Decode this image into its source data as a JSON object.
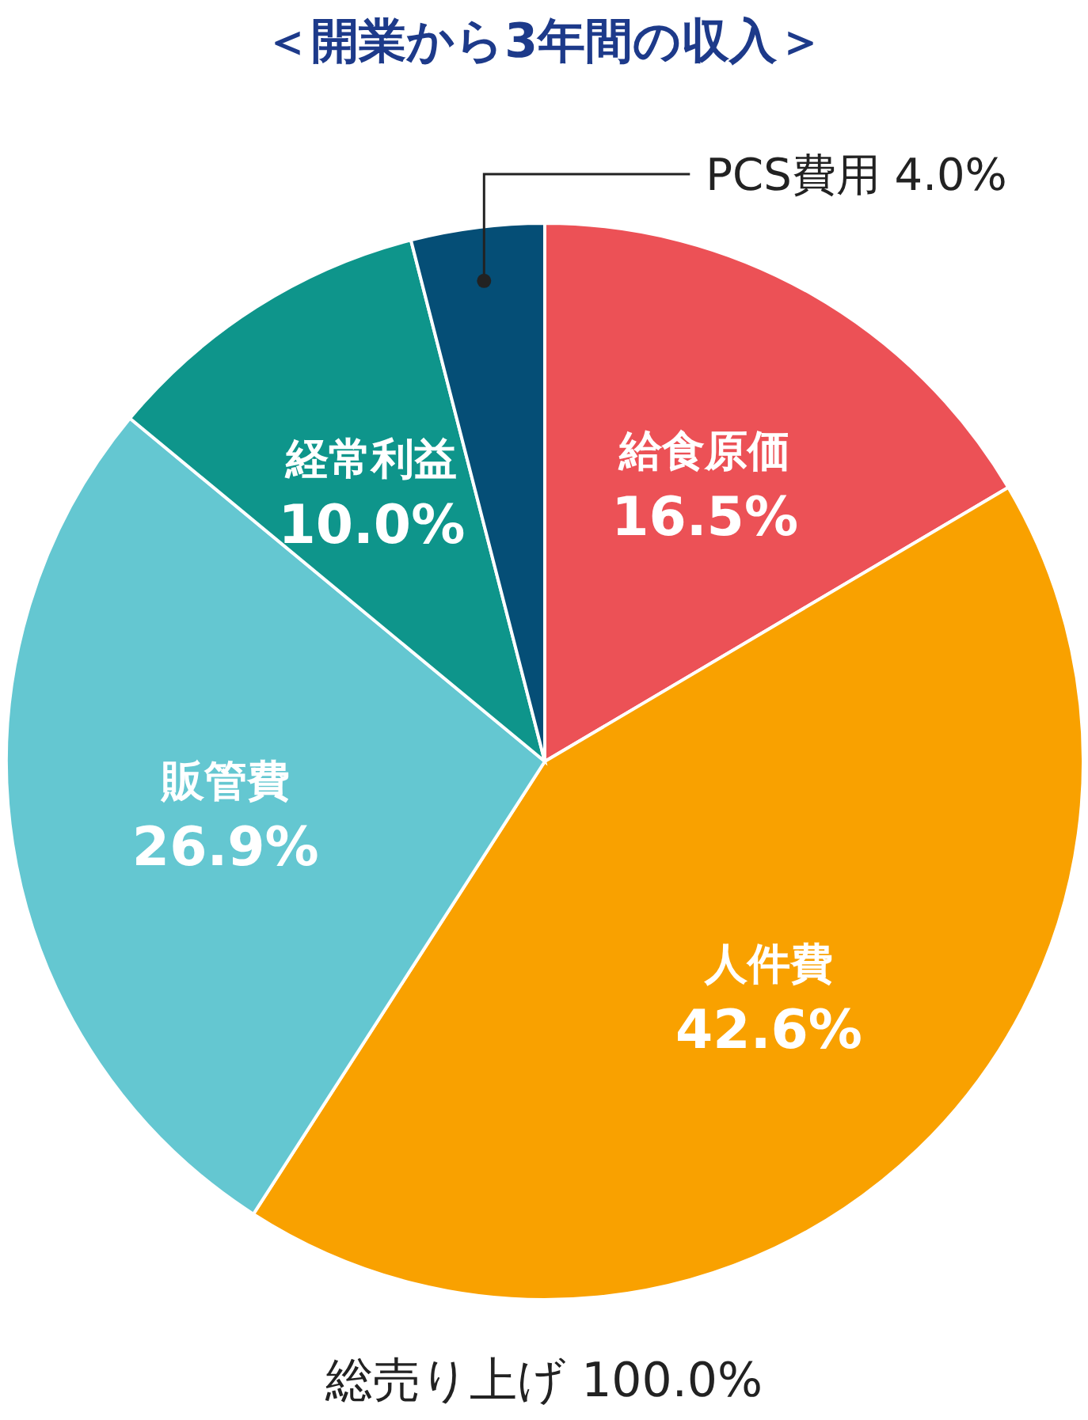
{
  "chart_data": {
    "type": "pie",
    "title": "＜開業から3年間の収入＞",
    "categories": [
      "給食原価",
      "人件費",
      "販管費",
      "経常利益",
      "PCS費用"
    ],
    "values": [
      16.5,
      42.6,
      26.9,
      10.0,
      4.0
    ],
    "colors": [
      "#ec5156",
      "#f9a100",
      "#64c7d1",
      "#0e958b",
      "#054e76"
    ],
    "value_labels": [
      "16.5%",
      "42.6%",
      "26.9%",
      "10.0%",
      "4.0%"
    ],
    "annotations": [
      "総売り上げ 100.0%"
    ]
  }
}
